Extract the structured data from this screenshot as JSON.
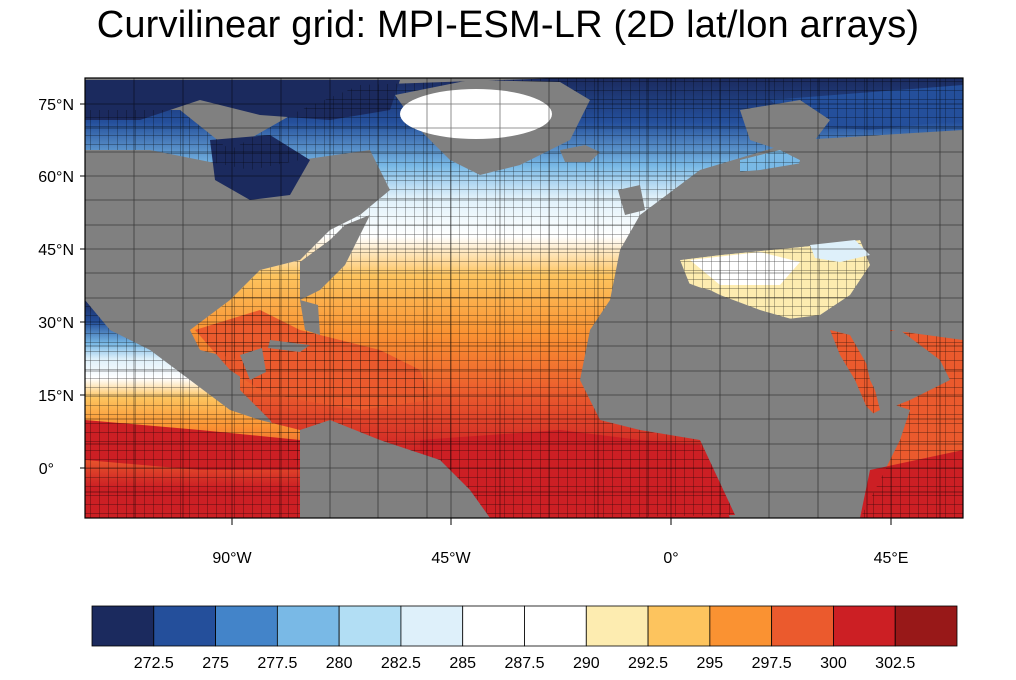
{
  "title": "Curvilinear grid:  MPI-ESM-LR  (2D lat/lon arrays)",
  "map": {
    "lat_ticks": [
      "75°N",
      "60°N",
      "45°N",
      "30°N",
      "15°N",
      "0°"
    ],
    "lon_ticks": [
      "90°W",
      "45°W",
      "0°",
      "45°E"
    ],
    "land_color": "#808080",
    "missing_color": "#ffffff",
    "grid_line_color": "#000000"
  },
  "colorbar": {
    "colors": [
      "#1b2a5e",
      "#244f9b",
      "#4384c9",
      "#79b9e6",
      "#b2def4",
      "#def0fa",
      "#ffffff",
      "#ffffff",
      "#fdecb0",
      "#fdc45e",
      "#fa9232",
      "#eb5a2d",
      "#cc1f24",
      "#981818"
    ],
    "labels": [
      "272.5",
      "275",
      "277.5",
      "280",
      "282.5",
      "285",
      "287.5",
      "290",
      "292.5",
      "295",
      "297.5",
      "300",
      "302.5"
    ]
  }
}
